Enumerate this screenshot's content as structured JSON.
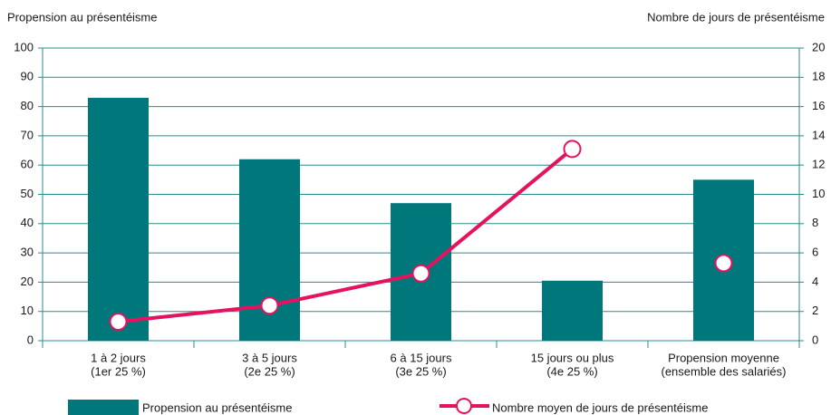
{
  "chart_data": {
    "type": "bar",
    "y_label": "Propension au présentéisme",
    "y2_label": "Nombre de jours de présentéisme",
    "categories": [
      [
        "1 à 2 jours",
        "(1er 25 %)"
      ],
      [
        "3 à 5 jours",
        "(2e 25 %)"
      ],
      [
        "6 à 15 jours",
        "(3e 25 %)"
      ],
      [
        "15 jours ou plus",
        "(4e 25 %)"
      ],
      [
        "Propension moyenne",
        "(ensemble des salariés)"
      ]
    ],
    "series": [
      {
        "name": "Propension au présentéisme",
        "type": "bar",
        "color": "#00777a",
        "values": [
          83,
          62,
          47,
          20.5,
          55
        ]
      },
      {
        "name": "Nombre moyen de jours de présentéisme",
        "type": "line",
        "axis": "y2",
        "color": "#e5135f",
        "values": [
          1.3,
          2.4,
          4.6,
          13.1,
          5.3
        ]
      }
    ],
    "ylim": [
      0,
      100
    ],
    "yticks": [
      0,
      10,
      20,
      30,
      40,
      50,
      60,
      70,
      80,
      90,
      100
    ],
    "y2lim": [
      0,
      20
    ],
    "y2ticks": [
      0,
      2,
      4,
      6,
      8,
      10,
      12,
      14,
      16,
      18,
      20
    ],
    "grid": true
  }
}
